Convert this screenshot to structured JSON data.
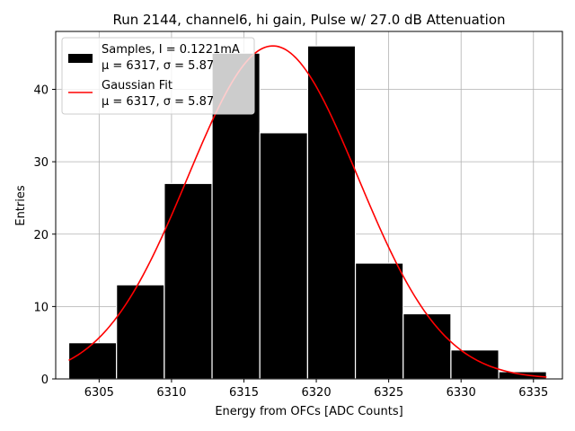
{
  "chart_data": {
    "type": "bar",
    "title": "Run 2144, channel6, hi gain, Pulse w/ 27.0 dB Attenuation",
    "xlabel": "Energy from OFCs [ADC Counts]",
    "ylabel": "Entries",
    "xlim": [
      6302,
      6337
    ],
    "ylim": [
      0,
      48
    ],
    "xticks": [
      6305,
      6310,
      6315,
      6320,
      6325,
      6330,
      6335
    ],
    "yticks": [
      0,
      10,
      20,
      30,
      40
    ],
    "grid": true,
    "bin_edges": [
      6302.9,
      6306.2,
      6309.5,
      6312.8,
      6316.1,
      6319.4,
      6322.7,
      6326.0,
      6329.3,
      6332.6,
      6335.9
    ],
    "values": [
      5,
      13,
      27,
      45,
      34,
      46,
      16,
      9,
      4,
      1
    ],
    "bar_color": "#000000",
    "fit": {
      "name": "Gaussian Fit",
      "mu": 6317.0,
      "sigma": 5.87,
      "amplitude": 46,
      "x_range": [
        6302.9,
        6335.9
      ],
      "color": "#ff0000"
    },
    "legend": {
      "placement": "upper-left",
      "entries": [
        {
          "kind": "bar",
          "line1": "Samples, I = 0.1221mA",
          "line2": "μ = 6317, σ = 5.87"
        },
        {
          "kind": "line",
          "line1": "Gaussian Fit",
          "line2": "μ = 6317, σ = 5.87"
        }
      ]
    }
  }
}
